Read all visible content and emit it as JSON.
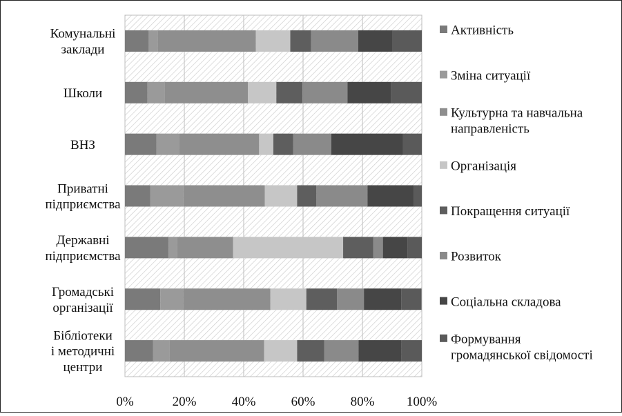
{
  "chart_data": {
    "type": "bar",
    "orientation": "horizontal",
    "stacked": "percent",
    "grid": true,
    "legend_position": "right",
    "xlim": [
      0,
      100
    ],
    "x_ticks": [
      "0%",
      "20%",
      "40%",
      "60%",
      "80%",
      "100%"
    ],
    "categories": [
      [
        "Комунальні",
        "заклади"
      ],
      [
        "Школи"
      ],
      [
        "ВНЗ"
      ],
      [
        "Приватні",
        "підприємства"
      ],
      [
        "Державні",
        "підприємства"
      ],
      [
        "Громадські",
        "організації"
      ],
      [
        "Бібліотеки",
        "і методичні",
        "центри"
      ]
    ],
    "series": [
      {
        "name": [
          "Активність"
        ],
        "color": "#7a7a7a",
        "values": [
          8.0,
          7.6,
          10.6,
          8.5,
          14.7,
          11.9,
          9.5
        ]
      },
      {
        "name": [
          "Зміна ситуації"
        ],
        "color": "#9a9a9a",
        "values": [
          3.0,
          5.8,
          7.6,
          11.2,
          2.8,
          7.7,
          5.6
        ]
      },
      {
        "name": [
          "Культурна та навчальна",
          "направленість"
        ],
        "color": "#8e8e8e",
        "values": [
          33.1,
          28.0,
          27.0,
          27.4,
          18.9,
          29.4,
          31.8
        ]
      },
      {
        "name": [
          "Організація"
        ],
        "color": "#c6c6c6",
        "values": [
          11.6,
          9.6,
          4.8,
          10.9,
          37.1,
          12.1,
          11.1
        ]
      },
      {
        "name": [
          "Покращення ситуації"
        ],
        "color": "#5e5e5e",
        "values": [
          7.0,
          8.8,
          6.7,
          6.5,
          10.1,
          10.3,
          9.1
        ]
      },
      {
        "name": [
          "Розвиток"
        ],
        "color": "#8a8a8a",
        "values": [
          15.9,
          15.2,
          12.8,
          17.2,
          3.3,
          9.1,
          11.6
        ]
      },
      {
        "name": [
          "Соціальна складова"
        ],
        "color": "#464646",
        "values": [
          11.4,
          14.7,
          24.2,
          15.5,
          8.3,
          12.6,
          14.5
        ]
      },
      {
        "name": [
          "Формування",
          "громадянської свідомості"
        ],
        "color": "#5a5a5a",
        "values": [
          10.0,
          10.3,
          6.3,
          2.8,
          4.8,
          6.8,
          6.8
        ]
      }
    ]
  }
}
